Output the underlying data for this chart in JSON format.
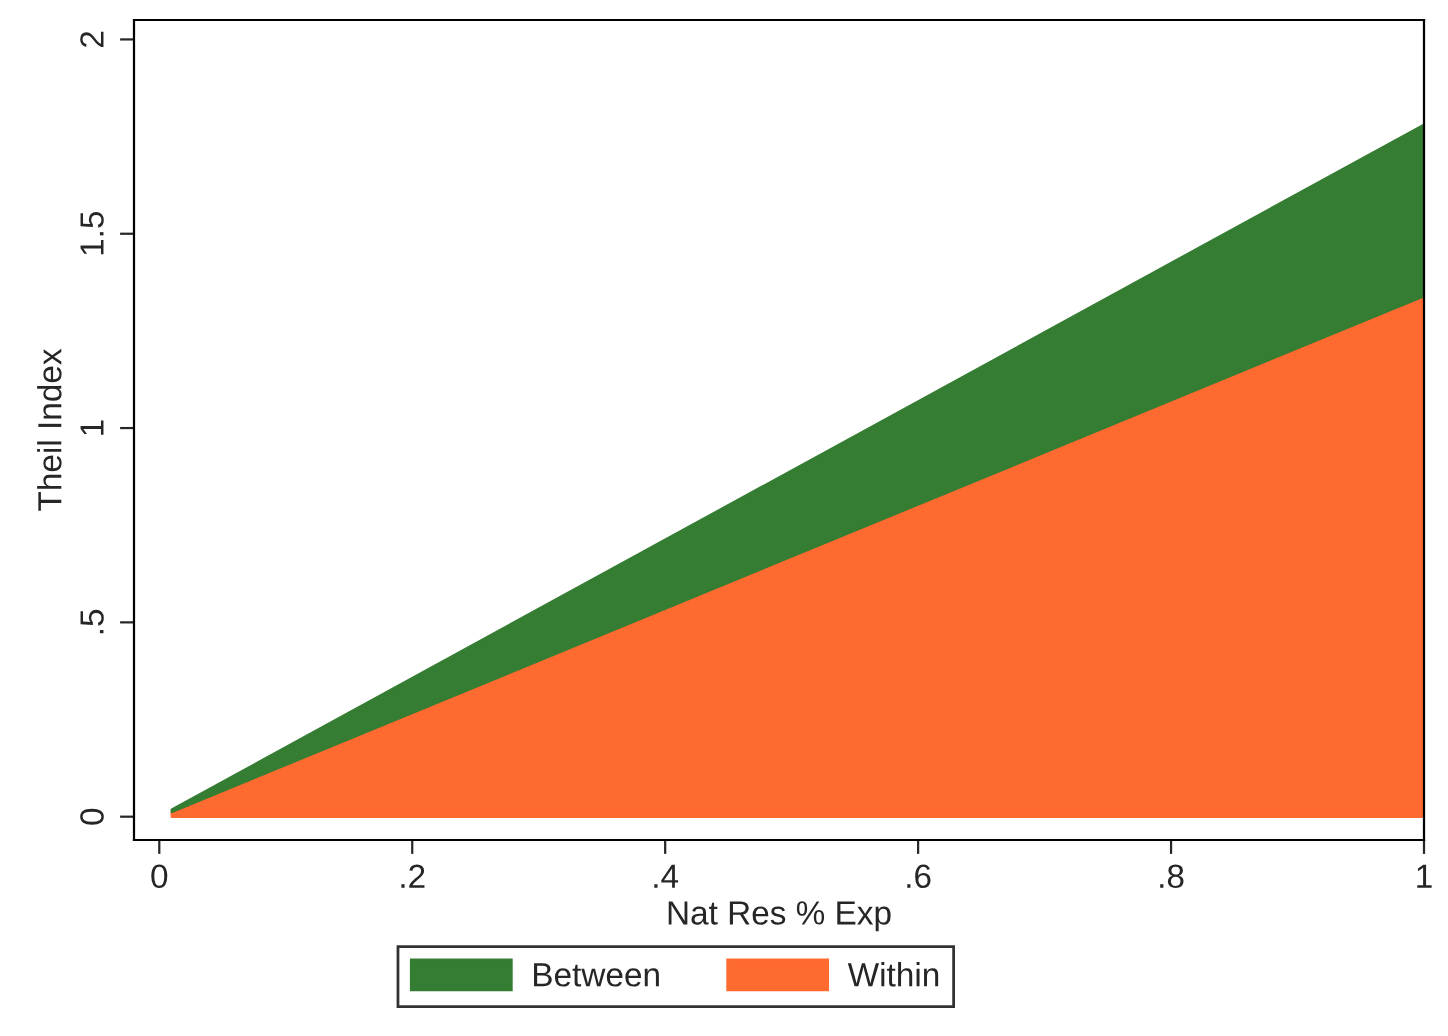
{
  "chart_data": {
    "type": "area",
    "stacked": true,
    "xlabel": "Nat Res % Exp",
    "ylabel": "Theil Index",
    "x": [
      0.01,
      1
    ],
    "series": [
      {
        "name": "Within",
        "color": "#ff6a30",
        "values": [
          0.013,
          1.34
        ]
      },
      {
        "name": "Between",
        "color": "#357d32",
        "values": [
          0.005,
          0.44
        ]
      }
    ],
    "xlim": [
      -0.02,
      1.0
    ],
    "ylim": [
      -0.06,
      2.05
    ],
    "xticks": [
      0,
      {
        "value": 0.2,
        "label": ".2"
      },
      {
        "value": 0.4,
        "label": ".4"
      },
      {
        "value": 0.6,
        "label": ".6"
      },
      {
        "value": 0.8,
        "label": ".8"
      },
      1
    ],
    "yticks": [
      0,
      {
        "value": 0.5,
        "label": ".5"
      },
      1,
      {
        "value": 1.5,
        "label": "1.5"
      },
      2
    ],
    "grid": false,
    "legend": "bottom"
  }
}
